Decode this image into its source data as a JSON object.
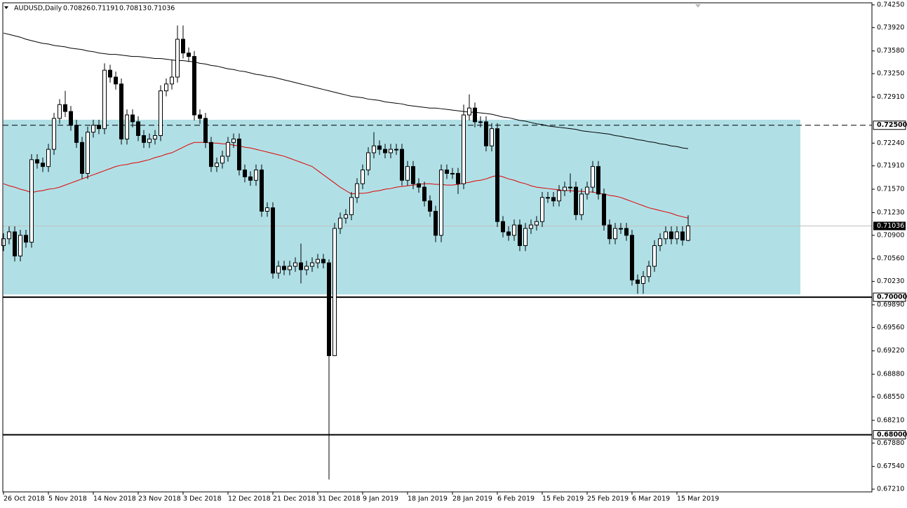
{
  "chart_data": {
    "type": "candlestick",
    "symbol": "AUDUSD,Daily",
    "categories": [
      "26 Oct 2018",
      null,
      null,
      null,
      null,
      null,
      null,
      null,
      "5 Nov 2018",
      null,
      null,
      null,
      null,
      null,
      null,
      null,
      "14 Nov 2018",
      null,
      null,
      null,
      null,
      null,
      null,
      null,
      "23 Nov 2018",
      null,
      null,
      null,
      null,
      null,
      null,
      null,
      "3 Dec 2018",
      null,
      null,
      null,
      null,
      null,
      null,
      null,
      "12 Dec 2018",
      null,
      null,
      null,
      null,
      null,
      null,
      null,
      "21 Dec 2018",
      null,
      null,
      null,
      null,
      null,
      null,
      null,
      "31 Dec 2018",
      null,
      null,
      null,
      null,
      null,
      null,
      null,
      "9 Jan 2019",
      null,
      null,
      null,
      null,
      null,
      null,
      null,
      "18 Jan 2019",
      null,
      null,
      null,
      null,
      null,
      null,
      null,
      "28 Jan 2019",
      null,
      null,
      null,
      null,
      null,
      null,
      null,
      "6 Feb 2019",
      null,
      null,
      null,
      null,
      null,
      null,
      null,
      "15 Feb 2019",
      null,
      null,
      null,
      null,
      null,
      null,
      null,
      "25 Feb 2019",
      null,
      null,
      null,
      null,
      null,
      null,
      null,
      "6 Mar 2019",
      null,
      null,
      null,
      null,
      null,
      null,
      null,
      "15 Mar 2019",
      null,
      null
    ],
    "open": [
      0.7075,
      0.7085,
      0.7095,
      0.706,
      0.709,
      0.708,
      0.72,
      0.7195,
      0.719,
      0.7215,
      0.726,
      0.728,
      0.727,
      0.725,
      0.7225,
      0.718,
      0.724,
      0.725,
      0.7245,
      0.733,
      0.732,
      0.731,
      0.723,
      0.7265,
      0.7255,
      0.7235,
      0.7225,
      0.723,
      0.7235,
      0.73,
      0.731,
      0.732,
      0.7375,
      0.7355,
      0.735,
      0.7265,
      0.726,
      0.7225,
      0.719,
      0.7195,
      0.7205,
      0.7225,
      0.723,
      0.7185,
      0.7175,
      0.717,
      0.7185,
      0.7125,
      0.713,
      0.7035,
      0.7045,
      0.704,
      0.7045,
      0.705,
      0.704,
      0.7045,
      0.705,
      0.7055,
      0.705,
      0.6915,
      0.71,
      0.7115,
      0.712,
      0.7145,
      0.7165,
      0.7185,
      0.721,
      0.722,
      0.7215,
      0.721,
      0.7215,
      0.7215,
      0.717,
      0.719,
      0.7165,
      0.716,
      0.714,
      0.7125,
      0.709,
      0.7185,
      0.718,
      0.718,
      0.7165,
      0.7265,
      0.7275,
      0.7255,
      0.7255,
      0.722,
      0.7245,
      0.711,
      0.7095,
      0.709,
      0.7105,
      0.7075,
      0.71,
      0.7105,
      0.711,
      0.7145,
      0.7145,
      0.714,
      0.7155,
      0.716,
      0.716,
      0.712,
      0.715,
      0.716,
      0.719,
      0.715,
      0.7105,
      0.7085,
      0.71,
      0.71,
      0.709,
      0.7025,
      0.702,
      0.703,
      0.7045,
      0.7075,
      0.7085,
      0.7095,
      0.7085,
      0.7095,
      0.70826
    ],
    "high": [
      0.7093,
      0.7103,
      0.7103,
      0.7098,
      0.7098,
      0.7208,
      0.7208,
      0.7203,
      0.7223,
      0.7268,
      0.7288,
      0.73,
      0.7278,
      0.7258,
      0.7233,
      0.7248,
      0.7258,
      0.7258,
      0.734,
      0.7338,
      0.7328,
      0.7318,
      0.7273,
      0.7273,
      0.7263,
      0.7243,
      0.7238,
      0.7243,
      0.7308,
      0.7318,
      0.7345,
      0.7395,
      0.7395,
      0.7363,
      0.7358,
      0.7273,
      0.7268,
      0.7233,
      0.7203,
      0.7213,
      0.7233,
      0.7238,
      0.7238,
      0.7193,
      0.7183,
      0.7193,
      0.7193,
      0.7138,
      0.7138,
      0.7053,
      0.7053,
      0.7053,
      0.7058,
      0.7078,
      0.7053,
      0.7058,
      0.7063,
      0.7063,
      0.7055,
      0.7108,
      0.7123,
      0.7128,
      0.7153,
      0.7173,
      0.7193,
      0.7218,
      0.724,
      0.7228,
      0.7223,
      0.7223,
      0.7223,
      0.7223,
      0.7198,
      0.7198,
      0.7173,
      0.7168,
      0.7148,
      0.7133,
      0.7193,
      0.7193,
      0.7188,
      0.7188,
      0.728,
      0.7295,
      0.7283,
      0.7263,
      0.7263,
      0.7253,
      0.7253,
      0.7118,
      0.7103,
      0.7113,
      0.7113,
      0.7108,
      0.7113,
      0.7118,
      0.7153,
      0.7153,
      0.7153,
      0.7163,
      0.7168,
      0.718,
      0.7168,
      0.7158,
      0.7168,
      0.7198,
      0.7198,
      0.7158,
      0.7113,
      0.7108,
      0.7108,
      0.7108,
      0.7098,
      0.7033,
      0.7038,
      0.7053,
      0.7083,
      0.7093,
      0.7103,
      0.7103,
      0.7103,
      0.7103,
      0.71191
    ],
    "low": [
      0.7067,
      0.7077,
      0.7052,
      0.7052,
      0.7072,
      0.7072,
      0.7187,
      0.7182,
      0.7182,
      0.7207,
      0.7252,
      0.7262,
      0.7242,
      0.7217,
      0.7172,
      0.7172,
      0.7232,
      0.7237,
      0.7237,
      0.7312,
      0.7302,
      0.7222,
      0.7222,
      0.7247,
      0.7227,
      0.7217,
      0.7217,
      0.7222,
      0.7227,
      0.7292,
      0.7302,
      0.7312,
      0.7347,
      0.7342,
      0.7257,
      0.7252,
      0.7217,
      0.7182,
      0.7182,
      0.7187,
      0.7197,
      0.7217,
      0.7177,
      0.7167,
      0.7162,
      0.7162,
      0.7117,
      0.7117,
      0.7027,
      0.7027,
      0.7032,
      0.7032,
      0.7037,
      0.702,
      0.7032,
      0.7037,
      0.7042,
      0.7042,
      0.6735,
      0.6915,
      0.7092,
      0.7107,
      0.7112,
      0.7137,
      0.7157,
      0.7177,
      0.7202,
      0.7207,
      0.7202,
      0.7202,
      0.7207,
      0.7162,
      0.7162,
      0.7157,
      0.7152,
      0.7132,
      0.7117,
      0.708,
      0.708,
      0.7172,
      0.7172,
      0.715,
      0.7157,
      0.7257,
      0.7247,
      0.7247,
      0.7212,
      0.7212,
      0.7102,
      0.7087,
      0.7082,
      0.7082,
      0.7067,
      0.7067,
      0.7092,
      0.7097,
      0.7102,
      0.7137,
      0.7132,
      0.7132,
      0.7147,
      0.7152,
      0.7112,
      0.7112,
      0.7142,
      0.7152,
      0.7142,
      0.7097,
      0.7077,
      0.7077,
      0.7092,
      0.7082,
      0.7017,
      0.7005,
      0.7005,
      0.7022,
      0.7037,
      0.7067,
      0.7077,
      0.7077,
      0.7077,
      0.7075,
      0.70813
    ],
    "close": [
      0.7085,
      0.7095,
      0.706,
      0.709,
      0.708,
      0.72,
      0.7195,
      0.719,
      0.7215,
      0.726,
      0.728,
      0.727,
      0.725,
      0.7225,
      0.718,
      0.724,
      0.725,
      0.7245,
      0.733,
      0.732,
      0.731,
      0.723,
      0.7265,
      0.7255,
      0.7235,
      0.7225,
      0.723,
      0.7235,
      0.73,
      0.731,
      0.732,
      0.7375,
      0.7355,
      0.735,
      0.7265,
      0.726,
      0.7225,
      0.719,
      0.7195,
      0.7205,
      0.7225,
      0.723,
      0.7185,
      0.7175,
      0.717,
      0.7185,
      0.7125,
      0.713,
      0.7035,
      0.7045,
      0.704,
      0.7045,
      0.705,
      0.704,
      0.7045,
      0.705,
      0.7055,
      0.705,
      0.6915,
      0.71,
      0.7115,
      0.712,
      0.7145,
      0.7165,
      0.7185,
      0.721,
      0.722,
      0.7215,
      0.721,
      0.7215,
      0.7215,
      0.717,
      0.719,
      0.7165,
      0.716,
      0.714,
      0.7125,
      0.709,
      0.7185,
      0.718,
      0.718,
      0.7165,
      0.7265,
      0.7275,
      0.7255,
      0.7255,
      0.722,
      0.7245,
      0.711,
      0.7095,
      0.709,
      0.7105,
      0.7075,
      0.71,
      0.7105,
      0.711,
      0.7145,
      0.7145,
      0.714,
      0.7155,
      0.716,
      0.716,
      0.712,
      0.715,
      0.716,
      0.719,
      0.715,
      0.7105,
      0.7085,
      0.71,
      0.71,
      0.709,
      0.7025,
      0.702,
      0.703,
      0.7045,
      0.7075,
      0.7085,
      0.7095,
      0.7085,
      0.7095,
      0.7083,
      0.71036
    ],
    "bull_color": "#ffffff",
    "bear_color": "#000000",
    "overlays": [
      {
        "color": "#e00000",
        "values": [
          0.7165,
          0.7162,
          0.716,
          0.7157,
          0.7155,
          0.7152,
          0.7154,
          0.7155,
          0.7157,
          0.7158,
          0.716,
          0.7163,
          0.7166,
          0.7169,
          0.7172,
          0.7175,
          0.7178,
          0.7181,
          0.7184,
          0.7187,
          0.719,
          0.7192,
          0.7193,
          0.7195,
          0.7196,
          0.7198,
          0.72,
          0.7203,
          0.7205,
          0.7208,
          0.721,
          0.7214,
          0.7218,
          0.7222,
          0.7225,
          0.7225,
          0.7225,
          0.7224,
          0.7224,
          0.7223,
          0.7223,
          0.7221,
          0.722,
          0.7218,
          0.7217,
          0.7215,
          0.7213,
          0.7211,
          0.7209,
          0.7207,
          0.7205,
          0.7202,
          0.7199,
          0.7196,
          0.7193,
          0.719,
          0.7184,
          0.7178,
          0.7172,
          0.7166,
          0.716,
          0.7155,
          0.715,
          0.7151,
          0.7151,
          0.7152,
          0.7154,
          0.7155,
          0.7157,
          0.7158,
          0.716,
          0.7161,
          0.7162,
          0.7163,
          0.7164,
          0.7165,
          0.7165,
          0.7164,
          0.7164,
          0.7163,
          0.7163,
          0.7164,
          0.7166,
          0.7167,
          0.7169,
          0.717,
          0.7172,
          0.7175,
          0.7177,
          0.7175,
          0.7172,
          0.717,
          0.7167,
          0.7165,
          0.7162,
          0.716,
          0.7159,
          0.7158,
          0.7157,
          0.7156,
          0.7155,
          0.7155,
          0.7154,
          0.7154,
          0.7153,
          0.7153,
          0.7151,
          0.715,
          0.7148,
          0.7147,
          0.7145,
          0.7142,
          0.7139,
          0.7136,
          0.7133,
          0.713,
          0.7128,
          0.7126,
          0.7124,
          0.7122,
          0.7119,
          0.7117,
          0.7115
        ]
      },
      {
        "color": "#000000",
        "values": [
          0.7384,
          0.7382,
          0.738,
          0.7378,
          0.7375,
          0.7373,
          0.7371,
          0.7369,
          0.7368,
          0.7366,
          0.7365,
          0.7364,
          0.7362,
          0.7361,
          0.736,
          0.7358,
          0.7357,
          0.7355,
          0.7354,
          0.7353,
          0.7353,
          0.7352,
          0.7351,
          0.735,
          0.735,
          0.7349,
          0.7348,
          0.7347,
          0.7347,
          0.7346,
          0.7345,
          0.7344,
          0.7344,
          0.7343,
          0.7342,
          0.734,
          0.7339,
          0.7337,
          0.7336,
          0.7334,
          0.7332,
          0.7331,
          0.7329,
          0.7328,
          0.7326,
          0.7324,
          0.7323,
          0.7321,
          0.732,
          0.7318,
          0.7316,
          0.7314,
          0.7312,
          0.731,
          0.7308,
          0.7306,
          0.7304,
          0.7302,
          0.73,
          0.7298,
          0.7296,
          0.7294,
          0.7292,
          0.7291,
          0.729,
          0.7288,
          0.7287,
          0.7286,
          0.7284,
          0.7283,
          0.7282,
          0.7281,
          0.7279,
          0.7278,
          0.7277,
          0.7276,
          0.7275,
          0.7275,
          0.7274,
          0.7273,
          0.7272,
          0.7271,
          0.727,
          0.7269,
          0.7269,
          0.7268,
          0.7267,
          0.7266,
          0.7264,
          0.7262,
          0.7261,
          0.7259,
          0.7257,
          0.7256,
          0.7254,
          0.7252,
          0.7251,
          0.7249,
          0.7248,
          0.7247,
          0.7246,
          0.7245,
          0.7244,
          0.7242,
          0.7241,
          0.724,
          0.7239,
          0.7238,
          0.7237,
          0.7235,
          0.7234,
          0.7232,
          0.7231,
          0.7229,
          0.7228,
          0.7226,
          0.7225,
          0.7223,
          0.7222,
          0.722,
          0.7219,
          0.7217,
          0.7216
        ]
      }
    ],
    "zone": [
      0.7004,
      0.7258
    ],
    "zone_color": "#b0e0e6",
    "hlines": [
      {
        "value": 0.725,
        "label": "0.72500",
        "style": "dashed"
      },
      {
        "value": 0.7,
        "label": "0.70000",
        "style": "solid"
      },
      {
        "value": 0.68,
        "label": "0.68000",
        "style": "solid"
      }
    ],
    "ylim": [
      0.6717,
      0.7428
    ],
    "yticks": [
      {
        "value": 0.7425,
        "label": "0.74250"
      },
      {
        "value": 0.7392,
        "label": "0.73920"
      },
      {
        "value": 0.7358,
        "label": "0.73580"
      },
      {
        "value": 0.7325,
        "label": "0.73250"
      },
      {
        "value": 0.7291,
        "label": "0.72910"
      },
      {
        "value": 0.7224,
        "label": "0.72240"
      },
      {
        "value": 0.7191,
        "label": "0.71910"
      },
      {
        "value": 0.7157,
        "label": "0.71570"
      },
      {
        "value": 0.7123,
        "label": "0.71230"
      },
      {
        "value": 0.709,
        "label": "0.70900"
      },
      {
        "value": 0.7056,
        "label": "0.70560"
      },
      {
        "value": 0.7023,
        "label": "0.70230"
      },
      {
        "value": 0.6989,
        "label": "0.69890"
      },
      {
        "value": 0.6956,
        "label": "0.69560"
      },
      {
        "value": 0.6922,
        "label": "0.69220"
      },
      {
        "value": 0.6888,
        "label": "0.68880"
      },
      {
        "value": 0.6855,
        "label": "0.68550"
      },
      {
        "value": 0.6821,
        "label": "0.68210"
      },
      {
        "value": 0.6788,
        "label": "0.67880"
      },
      {
        "value": 0.6754,
        "label": "0.67540"
      },
      {
        "value": 0.6721,
        "label": "0.67210"
      }
    ]
  }
}
